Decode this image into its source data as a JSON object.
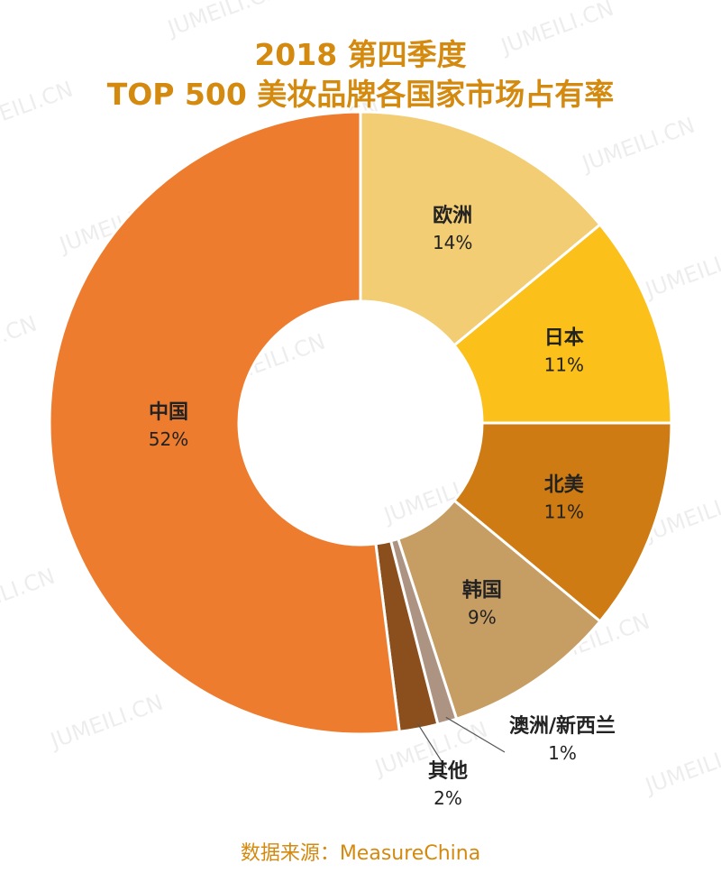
{
  "title_line_1": "2018 第四季度",
  "title_line_2": "TOP 500 美妆品牌各国家市场占有率",
  "source": "数据来源：MeasureChina",
  "watermark": "JUMEILI.CN",
  "chart_data": {
    "type": "pie",
    "style": "donut",
    "unit": "%",
    "categories": [
      "欧洲",
      "日本",
      "北美",
      "韩国",
      "澳洲/新西兰",
      "其他",
      "中国"
    ],
    "values": [
      14,
      11,
      11,
      9,
      1,
      2,
      52
    ],
    "value_labels": [
      "14%",
      "11%",
      "11%",
      "9%",
      "1%",
      "2%",
      "52%"
    ],
    "colors": [
      "#f2cd73",
      "#fbc01a",
      "#cd7b12",
      "#c69d63",
      "#ad9482",
      "#8a4f1c",
      "#ee7c2e"
    ],
    "label_colors": [
      "#222222",
      "#222222",
      "#222222",
      "#222222",
      "#222222",
      "#222222",
      "#222222"
    ]
  }
}
